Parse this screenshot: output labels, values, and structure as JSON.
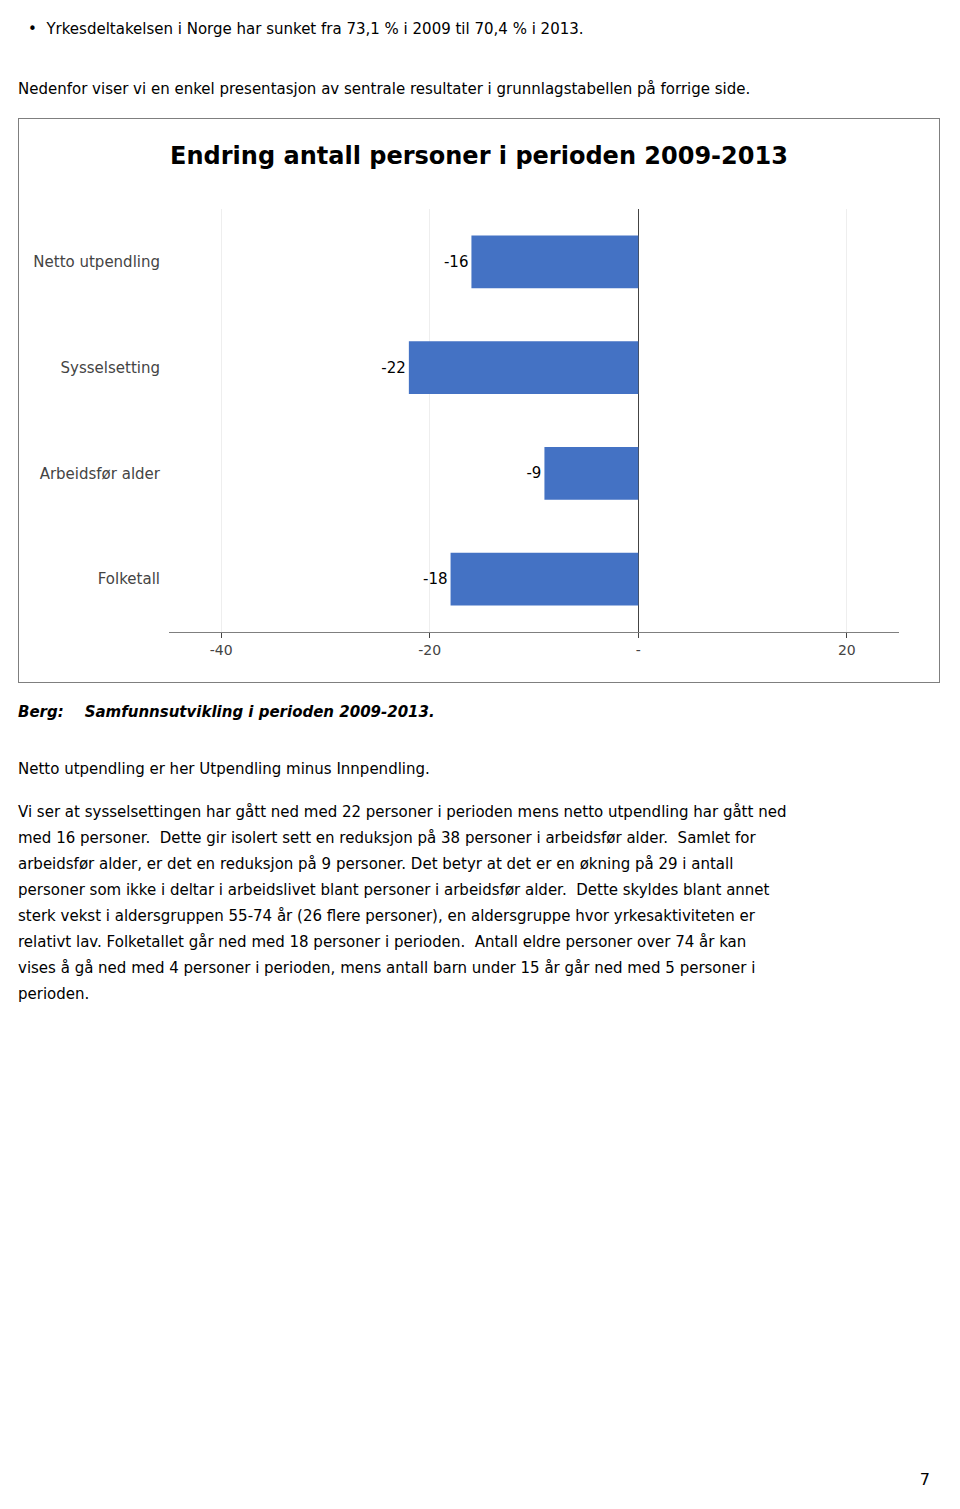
{
  "chart_data": {
    "type": "bar",
    "orientation": "horizontal",
    "title": "Endring antall personer i perioden 2009-2013",
    "categories": [
      "Netto utpendling",
      "Sysselsetting",
      "Arbeidsfør alder",
      "Folketall"
    ],
    "values": [
      -16,
      -22,
      -9,
      -18
    ],
    "color": "#4472C4",
    "xlim": [
      -45,
      25
    ],
    "xticks": [
      -40,
      -20,
      {
        "value": 0,
        "label": "-"
      },
      20
    ],
    "grid": true,
    "data_labels": true
  },
  "bullet_text": "•  Yrkesdeltakelsen i Norge har sunket fra 73,1 % i 2009 til 70,4 % i 2013.",
  "intro_text": "Nedenfor viser vi en enkel presentasjon av sentrale resultater i grunnlagstabellen på forrige side.",
  "source_text": "Berg:    Samfunnsutvikling i perioden 2009-2013.",
  "note": "Netto utpendling er her Utpendling minus Innpendling.",
  "body_lines": [
    "Vi ser at sysselsettingen har gått ned med 22 personer i perioden mens netto utpendling har gått ned",
    "med 16 personer.  Dette gir isolert sett en reduksjon på 38 personer i arbeidsfør alder.  Samlet for",
    "arbeidsfør alder, er det en reduksjon på 9 personer. Det betyr at det er en økning på 29 i antall",
    "personer som ikke i deltar i arbeidslivet blant personer i arbeidsfør alder.  Dette skyldes blant annet",
    "sterk vekst i aldersgruppen 55-74 år (26 flere personer), en aldersgruppe hvor yrkesaktiviteten er",
    "relativt lav. Folketallet går ned med 18 personer i perioden.  Antall eldre personer over 74 år kan",
    "vises å gå ned med 4 personer i perioden, mens antall barn under 15 år går ned med 5 personer i",
    "perioden."
  ],
  "page_number": "7"
}
